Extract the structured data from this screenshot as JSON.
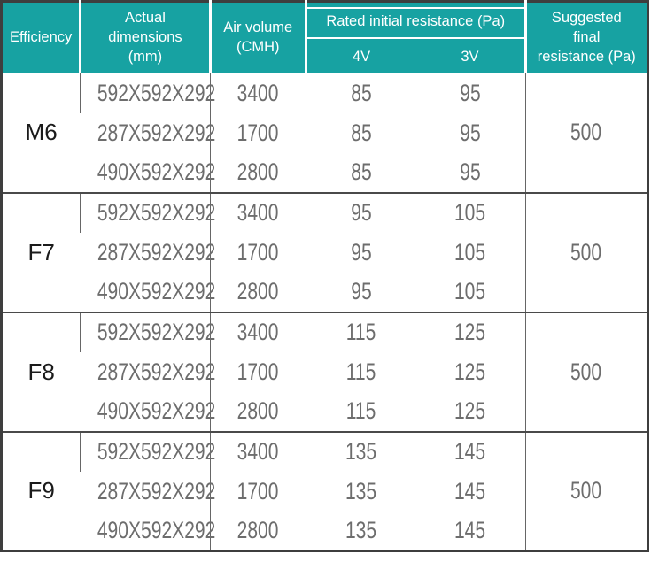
{
  "colors": {
    "header_bg": "#17a2a2",
    "header_text": "#ffffff",
    "outer_border": "#3e3e3e",
    "column_line": "#666666",
    "group_line": "#4a4a4a",
    "value_text": "#6d6d6d",
    "efficiency_text": "#1b1b1b"
  },
  "header": {
    "efficiency": "Efficiency",
    "dimensions_lines": [
      "Actual",
      "dimensions",
      "(mm)"
    ],
    "air_volume_lines": [
      "Air volume",
      "(CMH)"
    ],
    "rated": {
      "title": "Rated initial resistance (Pa)",
      "sub": [
        "4V",
        "3V"
      ]
    },
    "suggested_lines": [
      "Suggested",
      "final",
      "resistance (Pa)"
    ]
  },
  "groups": [
    {
      "efficiency": "M6",
      "suggested": "500",
      "rows": [
        {
          "dimensions": "592X592X292",
          "air_volume": "3400",
          "v4": "85",
          "v3": "95"
        },
        {
          "dimensions": "287X592X292",
          "air_volume": "1700",
          "v4": "85",
          "v3": "95"
        },
        {
          "dimensions": "490X592X292",
          "air_volume": "2800",
          "v4": "85",
          "v3": "95"
        }
      ]
    },
    {
      "efficiency": "F7",
      "suggested": "500",
      "rows": [
        {
          "dimensions": "592X592X292",
          "air_volume": "3400",
          "v4": "95",
          "v3": "105"
        },
        {
          "dimensions": "287X592X292",
          "air_volume": "1700",
          "v4": "95",
          "v3": "105"
        },
        {
          "dimensions": "490X592X292",
          "air_volume": "2800",
          "v4": "95",
          "v3": "105"
        }
      ]
    },
    {
      "efficiency": "F8",
      "suggested": "500",
      "rows": [
        {
          "dimensions": "592X592X292",
          "air_volume": "3400",
          "v4": "115",
          "v3": "125"
        },
        {
          "dimensions": "287X592X292",
          "air_volume": "1700",
          "v4": "115",
          "v3": "125"
        },
        {
          "dimensions": "490X592X292",
          "air_volume": "2800",
          "v4": "115",
          "v3": "125"
        }
      ]
    },
    {
      "efficiency": "F9",
      "suggested": "500",
      "rows": [
        {
          "dimensions": "592X592X292",
          "air_volume": "3400",
          "v4": "135",
          "v3": "145"
        },
        {
          "dimensions": "287X592X292",
          "air_volume": "1700",
          "v4": "135",
          "v3": "145"
        },
        {
          "dimensions": "490X592X292",
          "air_volume": "2800",
          "v4": "135",
          "v3": "145"
        }
      ]
    }
  ],
  "chart_data": {
    "type": "table",
    "title": "Filter efficiency specification table",
    "columns": [
      "Efficiency",
      "Actual dimensions (mm)",
      "Air volume (CMH)",
      "Rated initial resistance (Pa) 4V",
      "Rated initial resistance (Pa) 3V",
      "Suggested final resistance (Pa)"
    ],
    "rows": [
      [
        "M6",
        "592X592X292",
        3400,
        85,
        95,
        500
      ],
      [
        "M6",
        "287X592X292",
        1700,
        85,
        95,
        500
      ],
      [
        "M6",
        "490X592X292",
        2800,
        85,
        95,
        500
      ],
      [
        "F7",
        "592X592X292",
        3400,
        95,
        105,
        500
      ],
      [
        "F7",
        "287X592X292",
        1700,
        95,
        105,
        500
      ],
      [
        "F7",
        "490X592X292",
        2800,
        95,
        105,
        500
      ],
      [
        "F8",
        "592X592X292",
        3400,
        115,
        125,
        500
      ],
      [
        "F8",
        "287X592X292",
        1700,
        115,
        125,
        500
      ],
      [
        "F8",
        "490X592X292",
        2800,
        115,
        125,
        500
      ],
      [
        "F9",
        "592X592X292",
        3400,
        135,
        145,
        500
      ],
      [
        "F9",
        "287X592X292",
        1700,
        135,
        145,
        500
      ],
      [
        "F9",
        "490X592X292",
        2800,
        135,
        145,
        500
      ]
    ]
  }
}
